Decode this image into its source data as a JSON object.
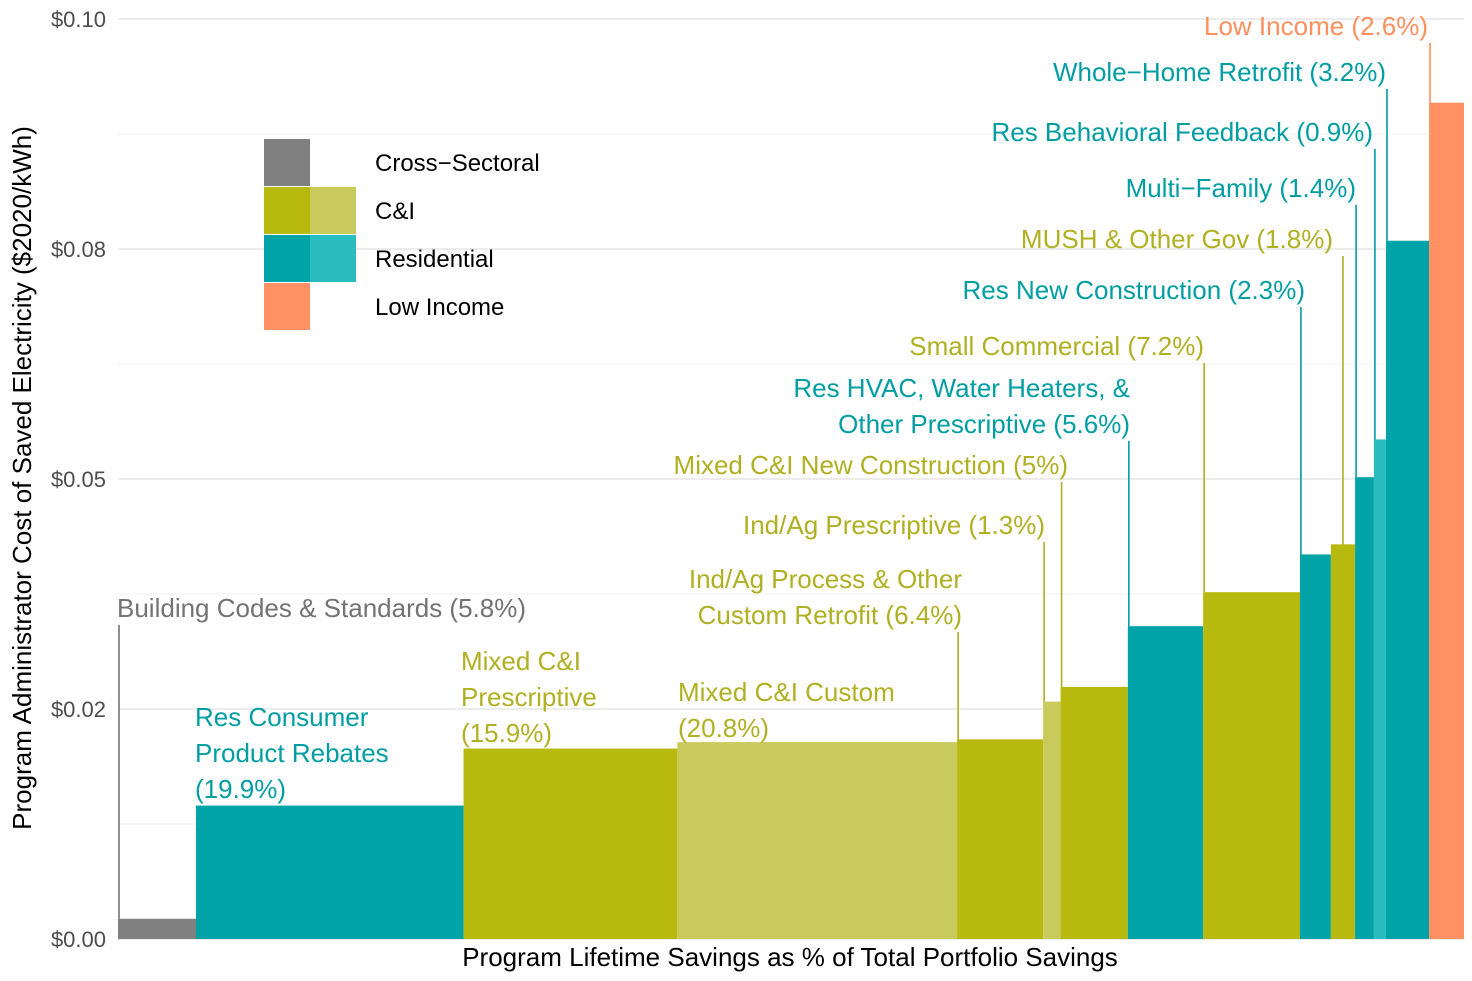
{
  "chart_data": {
    "type": "bar",
    "subtype": "variable-width-bar",
    "xlabel": "Program Lifetime Savings as % of Total Portfolio Savings",
    "ylabel": "Program Administrator Cost of Saved Electricity ($2020/kWh)",
    "ylim": [
      0,
      0.1
    ],
    "yticks": [
      0,
      0.025,
      0.05,
      0.075,
      0.1
    ],
    "ytick_labels": [
      "$0.00",
      "$0.02",
      "$0.05",
      "$0.08",
      "$0.10"
    ],
    "grid": true,
    "legend": {
      "position": "top-left",
      "items": [
        {
          "label": "Cross−Sectoral",
          "colors": [
            "#808080"
          ]
        },
        {
          "label": "C&I",
          "colors": [
            "#b7b90e",
            "#c9ca5c"
          ]
        },
        {
          "label": "Residential",
          "colors": [
            "#00a3a8",
            "#29bdbf"
          ]
        },
        {
          "label": "Low Income",
          "colors": [
            "#ff9162"
          ]
        }
      ]
    },
    "colors": {
      "Cross-Sectoral": "#808080",
      "C&I": "#b7b90e",
      "C&I-alt": "#c9ca5c",
      "Residential": "#00a3a8",
      "Residential-alt": "#29bdbf",
      "Low Income": "#ff9162",
      "Cross-Sectoral-label": "#737373",
      "C&I-label": "#afb022",
      "Residential-label": "#009ea3",
      "Low Income-label": "#ff8f5c"
    },
    "bars": [
      {
        "label": "Building Codes & Standards (5.8%)",
        "share": 5.8,
        "value": 0.0022,
        "sector": "Cross-Sectoral",
        "shade": "main"
      },
      {
        "label": "Res Consumer Product Rebates (19.9%)",
        "share": 19.9,
        "value": 0.0145,
        "sector": "Residential",
        "shade": "main"
      },
      {
        "label": "Mixed C&I Prescriptive (15.9%)",
        "share": 15.9,
        "value": 0.0207,
        "sector": "C&I",
        "shade": "main"
      },
      {
        "label": "Mixed C&I Custom (20.8%)",
        "share": 20.8,
        "value": 0.0214,
        "sector": "C&I",
        "shade": "alt"
      },
      {
        "label": "Ind/Ag Process & Other Custom Retrofit (6.4%)",
        "share": 6.4,
        "value": 0.0217,
        "sector": "C&I",
        "shade": "main"
      },
      {
        "label": "Ind/Ag Prescriptive (1.3%)",
        "share": 1.3,
        "value": 0.0258,
        "sector": "C&I",
        "shade": "alt"
      },
      {
        "label": "Mixed C&I New Construction (5%)",
        "share": 5.0,
        "value": 0.0274,
        "sector": "C&I",
        "shade": "main"
      },
      {
        "label": "Res HVAC, Water Heaters, & Other Prescriptive (5.6%)",
        "share": 5.6,
        "value": 0.034,
        "sector": "Residential",
        "shade": "main"
      },
      {
        "label": "Small Commercial (7.2%)",
        "share": 7.2,
        "value": 0.0377,
        "sector": "C&I",
        "shade": "main"
      },
      {
        "label": "Res New Construction (2.3%)",
        "share": 2.3,
        "value": 0.0418,
        "sector": "Residential",
        "shade": "main"
      },
      {
        "label": "MUSH & Other Gov (1.8%)",
        "share": 1.8,
        "value": 0.0429,
        "sector": "C&I",
        "shade": "main"
      },
      {
        "label": "Multi−Family (1.4%)",
        "share": 1.4,
        "value": 0.0502,
        "sector": "Residential",
        "shade": "main"
      },
      {
        "label": "Res Behavioral Feedback (0.9%)",
        "share": 0.9,
        "value": 0.0543,
        "sector": "Residential",
        "shade": "alt"
      },
      {
        "label": "Whole−Home Retrofit (3.2%)",
        "share": 3.2,
        "value": 0.0759,
        "sector": "Residential",
        "shade": "main"
      },
      {
        "label": "Low Income (2.6%)",
        "share": 2.6,
        "value": 0.0909,
        "sector": "Low Income",
        "shade": "main"
      }
    ]
  }
}
